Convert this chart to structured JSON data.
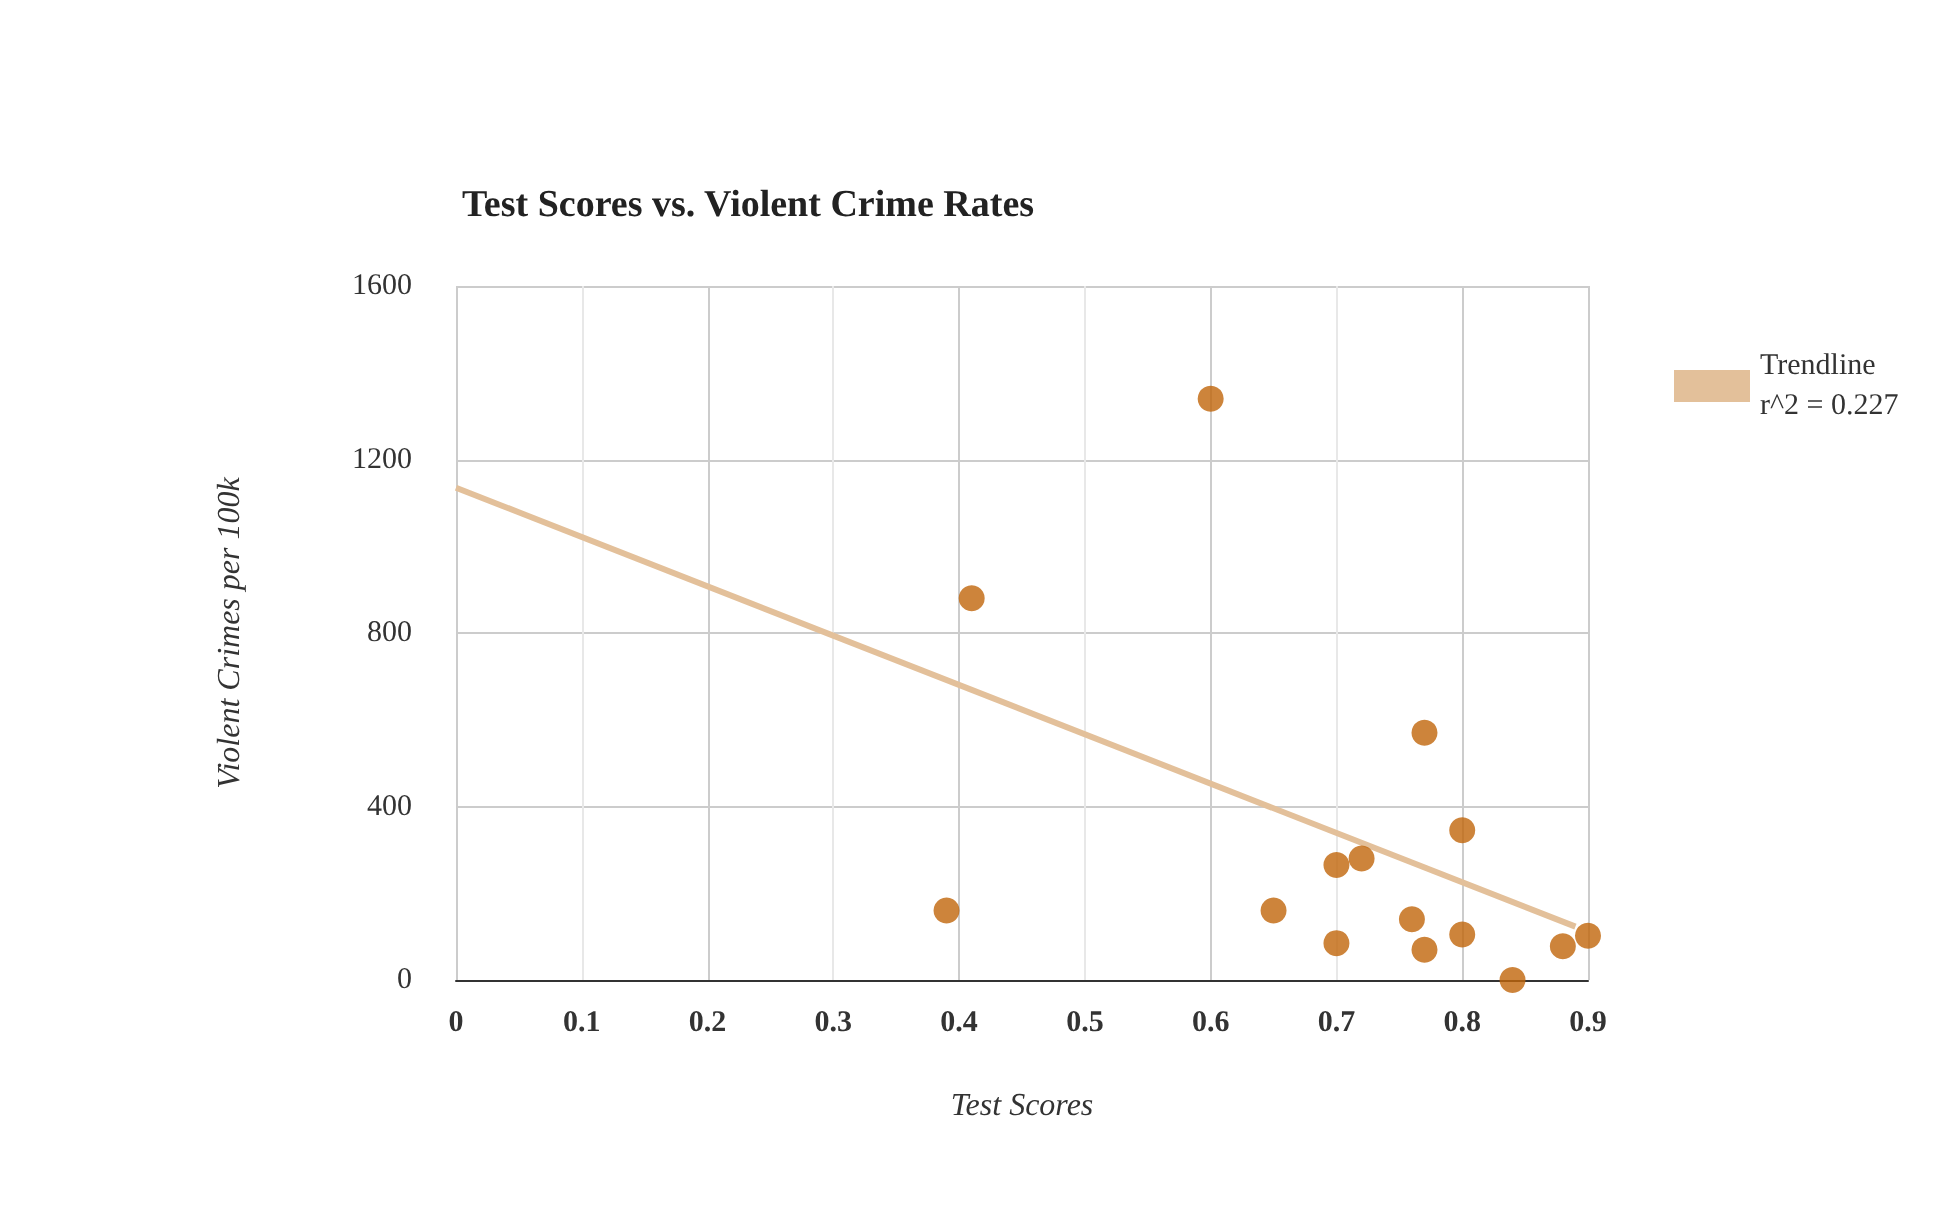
{
  "chart_data": {
    "type": "scatter",
    "title": "Test Scores vs. Violent Crime Rates",
    "xlabel": "Test Scores",
    "ylabel": "Violent Crimes per 100k",
    "x": [
      0.39,
      0.41,
      0.6,
      0.65,
      0.7,
      0.7,
      0.72,
      0.76,
      0.77,
      0.77,
      0.8,
      0.8,
      0.84,
      0.88,
      0.9
    ],
    "series": [
      {
        "color": "#c0650a",
        "marker": "circle",
        "values": [
          160,
          880,
          1340,
          160,
          265,
          85,
          280,
          140,
          570,
          70,
          345,
          105,
          0,
          78,
          102
        ]
      },
      {
        "type": "line",
        "marker": "none",
        "name": "Trendline r^2 = 0.227",
        "color": "#e3c09a",
        "x": [
          0,
          0.89
        ],
        "values": [
          1135,
          123
        ]
      }
    ],
    "xlim": [
      0,
      0.9
    ],
    "xticks": [
      0,
      0.1,
      0.2,
      0.3,
      0.4,
      0.5,
      0.6,
      0.7,
      0.8,
      0.9
    ],
    "ylim": [
      0,
      1600
    ],
    "yticks": [
      0,
      400,
      800,
      1200,
      1600
    ],
    "grid": true,
    "legend": "right"
  }
}
